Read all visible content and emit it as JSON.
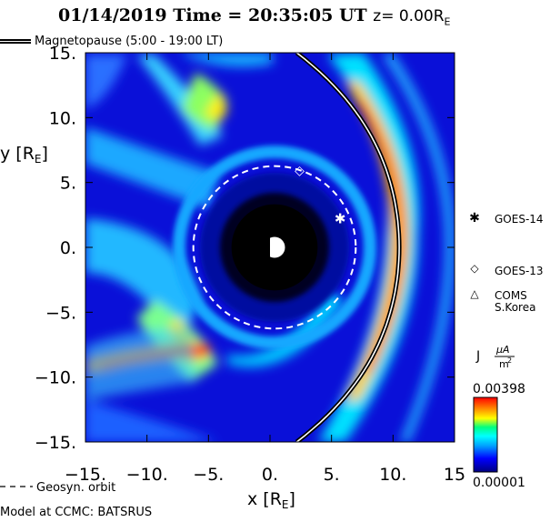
{
  "title": {
    "date": "01/14/2019",
    "time_label": "Time =",
    "time": "20:35:05 UT",
    "z_label": "z= 0.00R",
    "z_sub": "E"
  },
  "legend": {
    "magnetopause": "Magnetopause (5:00 - 19:00 LT)",
    "geosync": "Geosyn. orbit",
    "model": "Model at CCMC: BATSRUS"
  },
  "satellites": [
    {
      "name": "GOES-14",
      "symbol": "✱",
      "x": 5.7,
      "y": 2.2
    },
    {
      "name": "GOES-13",
      "symbol": "◇",
      "x": 2.4,
      "y": 5.9
    },
    {
      "name": "COMS S.Korea",
      "symbol": "△",
      "x": null,
      "y": null
    }
  ],
  "colorbar": {
    "label": "J",
    "unit_num": "μA",
    "unit_den": "m",
    "unit_exp": "2",
    "max": "0.00398",
    "min": "0.00001"
  },
  "chart_data": {
    "type": "heatmap",
    "xlabel": "x [R",
    "ylabel": "y [R",
    "label_sub": "E",
    "xlim": [
      -15,
      15
    ],
    "ylim": [
      -15,
      15
    ],
    "xticks": [
      "−15.",
      "−10.",
      "−5.",
      "0.",
      "5.",
      "10.",
      "15"
    ],
    "yticks": [
      "15.",
      "10.",
      "5.",
      "0.",
      "−5.",
      "−10.",
      "−15."
    ],
    "earth_radius": 3.5,
    "geosync_radius": 6.6,
    "magnetopause_subsolar_x": 10.5,
    "colorscale": [
      "#000080",
      "#0000ff",
      "#00a0ff",
      "#00ffff",
      "#00ff80",
      "#ffff00",
      "#ff8000",
      "#ff0000"
    ]
  }
}
